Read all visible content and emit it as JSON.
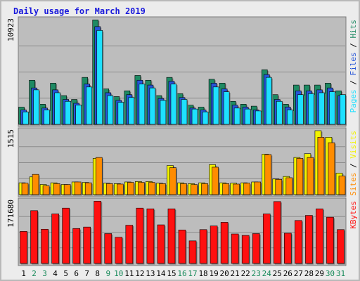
{
  "chart_data": {
    "type": "bar",
    "title": "Daily usage for March 2019",
    "days": [
      "1",
      "2",
      "3",
      "4",
      "5",
      "6",
      "7",
      "8",
      "9",
      "10",
      "11",
      "12",
      "13",
      "14",
      "15",
      "16",
      "17",
      "18",
      "19",
      "20",
      "21",
      "22",
      "23",
      "24",
      "25",
      "26",
      "27",
      "28",
      "29",
      "30",
      "31"
    ],
    "weekend_days": [
      "2",
      "3",
      "9",
      "10",
      "16",
      "17",
      "23",
      "24",
      "30",
      "31"
    ],
    "panels": [
      {
        "id": "hits-files-pages",
        "max_label": "10923",
        "max_value": 10923,
        "side_labels": [
          "Pages",
          "Files",
          "Hits"
        ],
        "series": [
          {
            "name": "Hits",
            "color": "#1e8a63",
            "values": [
              1800,
              4600,
              2100,
              4300,
              3000,
              2600,
              4900,
              10900,
              3700,
              2900,
              3500,
              5100,
              4600,
              3000,
              4900,
              3200,
              2000,
              1800,
              4700,
              4300,
              2400,
              2100,
              1900,
              5700,
              3100,
              2100,
              4100,
              4100,
              4100,
              4300,
              3500
            ]
          },
          {
            "name": "Files",
            "color": "#2655d8",
            "values": [
              1500,
              3800,
              1700,
              3600,
              2600,
              2200,
              4200,
              10200,
              3300,
              2500,
              3100,
              4600,
              4100,
              2700,
              4500,
              2800,
              1700,
              1500,
              4300,
              3700,
              2000,
              1800,
              1500,
              5200,
              2600,
              1800,
              3500,
              3500,
              3600,
              3800,
              3000
            ]
          },
          {
            "name": "Pages",
            "color": "#1ee0ff",
            "values": [
              1300,
              3600,
              1500,
              3300,
              2400,
              2000,
              3900,
              9800,
              3000,
              2300,
              2800,
              4200,
              3800,
              2500,
              4200,
              2600,
              1600,
              1300,
              3900,
              3400,
              1700,
              1600,
              1400,
              4900,
              2400,
              1500,
              3100,
              3200,
              3300,
              3400,
              3100
            ]
          }
        ]
      },
      {
        "id": "visits-sites",
        "max_label": "1515",
        "max_value": 1515,
        "side_labels": [
          "Sites",
          "Visits"
        ],
        "series": [
          {
            "name": "Visits",
            "color": "#f2f200",
            "values": [
              280,
              420,
              240,
              280,
              240,
              300,
              290,
              860,
              270,
              260,
              300,
              310,
              310,
              270,
              690,
              280,
              260,
              280,
              710,
              280,
              270,
              280,
              300,
              960,
              370,
              430,
              880,
              970,
              1515,
              1360,
              510
            ]
          },
          {
            "name": "Sites",
            "color": "#ff8c00",
            "values": [
              270,
              480,
              210,
              260,
              240,
              300,
              280,
              880,
              260,
              250,
              290,
              290,
              290,
              260,
              640,
              260,
              240,
              260,
              650,
              260,
              250,
              270,
              300,
              950,
              360,
              400,
              860,
              880,
              1360,
              1230,
              440
            ]
          }
        ]
      },
      {
        "id": "kbytes",
        "max_label": "171680",
        "max_value": 171680,
        "side_labels": [
          "KBytes"
        ],
        "series": [
          {
            "name": "KBytes",
            "color": "#ff1010",
            "values": [
              88000,
              145000,
              94000,
              136000,
              152000,
              96000,
              100000,
              171000,
              82000,
              72000,
              105000,
              152000,
              150000,
              106000,
              150000,
              92000,
              62000,
              93000,
              103000,
              113000,
              81000,
              77000,
              82000,
              136000,
              170000,
              83000,
              118000,
              132000,
              150000,
              127000,
              93000
            ]
          }
        ]
      }
    ]
  }
}
